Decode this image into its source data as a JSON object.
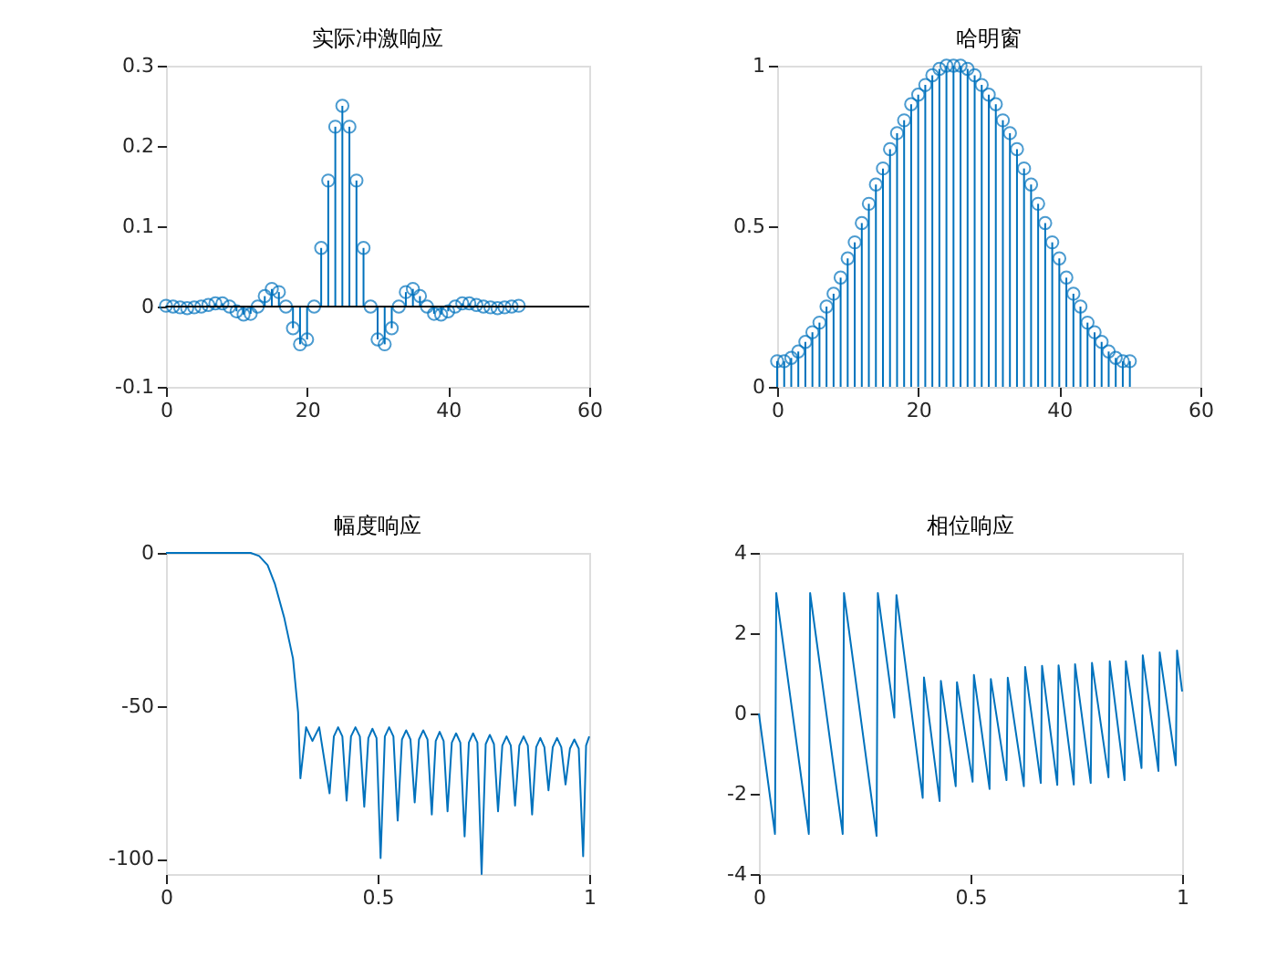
{
  "chart_data": [
    {
      "type": "lollipop",
      "title": "实际冲激响应",
      "xlim": [
        0,
        60
      ],
      "xticks": [
        0,
        20,
        40,
        60
      ],
      "ylim": [
        -0.1,
        0.3
      ],
      "yticks": [
        -0.1,
        0,
        0.1,
        0.2,
        0.3
      ],
      "grid": false,
      "legend": false,
      "marker": "circle",
      "ref_lines": [
        {
          "axis": "y",
          "value": 0,
          "color": "#000000"
        }
      ],
      "series": [
        {
          "color": "#0072bd",
          "x": [
            0,
            1,
            2,
            3,
            4,
            5,
            6,
            7,
            8,
            9,
            10,
            11,
            12,
            13,
            14,
            15,
            16,
            17,
            18,
            19,
            20,
            21,
            22,
            23,
            24,
            25,
            26,
            27,
            28,
            29,
            30,
            31,
            32,
            33,
            34,
            35,
            36,
            37,
            38,
            39,
            40,
            41,
            42,
            43,
            44,
            45,
            46,
            47,
            48,
            49,
            50
          ],
          "values": [
            0.001,
            0,
            -0.001,
            -0.002,
            -0.001,
            0,
            0.002,
            0.004,
            0.004,
            0,
            -0.006,
            -0.01,
            -0.009,
            0,
            0.013,
            0.022,
            0.018,
            0,
            -0.027,
            -0.047,
            -0.041,
            0,
            0.073,
            0.157,
            0.224,
            0.25,
            0.224,
            0.157,
            0.073,
            0,
            -0.041,
            -0.047,
            -0.027,
            0,
            0.018,
            0.022,
            0.013,
            0,
            -0.009,
            -0.01,
            -0.006,
            0,
            0.004,
            0.004,
            0.002,
            0,
            -0.001,
            -0.002,
            -0.001,
            0,
            0.001
          ]
        }
      ]
    },
    {
      "type": "lollipop",
      "title": "哈明窗",
      "xlim": [
        0,
        60
      ],
      "xticks": [
        0,
        20,
        40,
        60
      ],
      "ylim": [
        0,
        1
      ],
      "yticks": [
        0,
        0.5,
        1
      ],
      "grid": false,
      "legend": false,
      "marker": "circle",
      "series": [
        {
          "color": "#0072bd",
          "x": [
            0,
            1,
            2,
            3,
            4,
            5,
            6,
            7,
            8,
            9,
            10,
            11,
            12,
            13,
            14,
            15,
            16,
            17,
            18,
            19,
            20,
            21,
            22,
            23,
            24,
            25,
            26,
            27,
            28,
            29,
            30,
            31,
            32,
            33,
            34,
            35,
            36,
            37,
            38,
            39,
            40,
            41,
            42,
            43,
            44,
            45,
            46,
            47,
            48,
            49,
            50
          ],
          "values": [
            0.08,
            0.08,
            0.09,
            0.11,
            0.14,
            0.17,
            0.2,
            0.25,
            0.29,
            0.34,
            0.4,
            0.45,
            0.51,
            0.57,
            0.63,
            0.68,
            0.74,
            0.79,
            0.83,
            0.88,
            0.91,
            0.94,
            0.97,
            0.99,
            1,
            1,
            1,
            0.99,
            0.97,
            0.94,
            0.91,
            0.88,
            0.83,
            0.79,
            0.74,
            0.68,
            0.63,
            0.57,
            0.51,
            0.45,
            0.4,
            0.34,
            0.29,
            0.25,
            0.2,
            0.17,
            0.14,
            0.11,
            0.09,
            0.08,
            0.08
          ]
        }
      ]
    },
    {
      "type": "line",
      "title": "幅度响应",
      "xlim": [
        0,
        1
      ],
      "xticks": [
        0,
        0.5,
        1
      ],
      "ylim": [
        -105,
        0
      ],
      "yticks": [
        -100,
        -50,
        0
      ],
      "grid": false,
      "legend": false,
      "marker": "none",
      "line_style": "solid",
      "series": [
        {
          "color": "#0072bd",
          "x": [
            0,
            0.1,
            0.2,
            0.22,
            0.24,
            0.257,
            0.279,
            0.3,
            0.312,
            0.3175,
            0.331,
            0.346,
            0.362,
            0.3865,
            0.3966,
            0.4066,
            0.4167,
            0.4267,
            0.4371,
            0.4476,
            0.458,
            0.4684,
            0.4781,
            0.4877,
            0.4974,
            0.507,
            0.5171,
            0.5272,
            0.5373,
            0.5474,
            0.5575,
            0.5675,
            0.5776,
            0.5876,
            0.5977,
            0.6078,
            0.6179,
            0.628,
            0.6373,
            0.6466,
            0.6559,
            0.6652,
            0.6753,
            0.6854,
            0.6954,
            0.7055,
            0.7156,
            0.7256,
            0.7357,
            0.7457,
            0.7554,
            0.7651,
            0.7748,
            0.7845,
            0.7946,
            0.8046,
            0.8147,
            0.8247,
            0.8348,
            0.8449,
            0.8549,
            0.865,
            0.8747,
            0.8844,
            0.894,
            0.9037,
            0.9138,
            0.9239,
            0.9339,
            0.944,
            0.9544,
            0.9648,
            0.9752,
            0.9856,
            0.9925,
            1
          ],
          "values": [
            0,
            0,
            0,
            -1,
            -4,
            -10,
            -21,
            -34.5,
            -52,
            -73.7,
            -57,
            -61.5,
            -57,
            -78.6,
            -60,
            -57,
            -60,
            -81,
            -60,
            -57,
            -60,
            -83,
            -60.5,
            -57.5,
            -60.5,
            -99.8,
            -60,
            -57,
            -60,
            -87.5,
            -61,
            -58,
            -61,
            -81.6,
            -61,
            -58,
            -61,
            -85.5,
            -61.5,
            -58.5,
            -61.5,
            -84.5,
            -62,
            -59,
            -62,
            -92.7,
            -62,
            -59,
            -62,
            -105,
            -62.5,
            -59.5,
            -62.5,
            -84.5,
            -63,
            -60,
            -63,
            -82.6,
            -63,
            -60,
            -63,
            -85.5,
            -63.5,
            -60.5,
            -63.5,
            -77.6,
            -63.5,
            -60.5,
            -63.5,
            -75.7,
            -64,
            -61,
            -64,
            -99.2,
            -63,
            -60
          ]
        }
      ]
    },
    {
      "type": "line",
      "title": "相位响应",
      "xlim": [
        0,
        1
      ],
      "xticks": [
        0,
        0.5,
        1
      ],
      "ylim": [
        -4,
        4
      ],
      "yticks": [
        -4,
        -2,
        0,
        2,
        4
      ],
      "grid": false,
      "legend": false,
      "marker": "none",
      "line_style": "solid",
      "series": [
        {
          "color": "#0072bd",
          "x": [
            0,
            0.038,
            0.041,
            0.118,
            0.121,
            0.198,
            0.201,
            0.278,
            0.281,
            0.32,
            0.322,
            0.325,
            0.387,
            0.39,
            0.427,
            0.43,
            0.465,
            0.468,
            0.505,
            0.508,
            0.545,
            0.548,
            0.585,
            0.588,
            0.626,
            0.629,
            0.666,
            0.669,
            0.705,
            0.708,
            0.744,
            0.747,
            0.784,
            0.787,
            0.826,
            0.829,
            0.864,
            0.867,
            0.904,
            0.907,
            0.944,
            0.947,
            0.985,
            0.988,
            1
          ],
          "values": [
            0,
            -3.0,
            3.0,
            -3.0,
            3.0,
            -3.0,
            3.0,
            -3.05,
            3.0,
            -0.1,
            1.8,
            2.95,
            -2.1,
            0.9,
            -2.18,
            0.81,
            -1.81,
            0.78,
            -1.7,
            0.96,
            -1.88,
            0.86,
            -1.66,
            0.89,
            -1.81,
            1.16,
            -1.73,
            1.19,
            -1.78,
            1.2,
            -1.77,
            1.23,
            -1.73,
            1.26,
            -1.59,
            1.3,
            -1.66,
            1.3,
            -1.36,
            1.45,
            -1.43,
            1.52,
            -1.29,
            1.57,
            0.55
          ]
        }
      ]
    }
  ]
}
